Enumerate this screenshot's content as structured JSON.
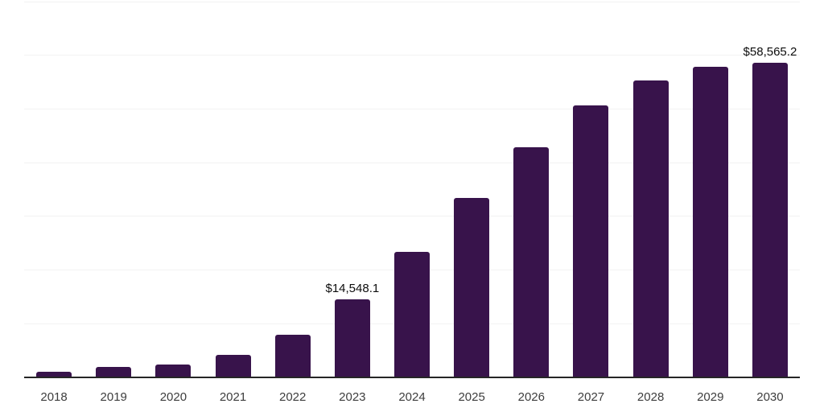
{
  "chart_data": {
    "type": "bar",
    "title": "",
    "xlabel": "",
    "ylabel": "",
    "categories": [
      "2018",
      "2019",
      "2020",
      "2021",
      "2022",
      "2023",
      "2024",
      "2025",
      "2026",
      "2027",
      "2028",
      "2029",
      "2030"
    ],
    "values": [
      1000,
      1900,
      2350,
      4230,
      7970,
      14548.1,
      23400,
      33400,
      42900,
      50600,
      55300,
      57900,
      58565.2
    ],
    "point_labels": [
      {
        "category": "2023",
        "text": "$14,548.1"
      },
      {
        "category": "2030",
        "text": "$58,565.2"
      }
    ],
    "ylim": [
      0,
      70000
    ],
    "gridline_interval": 10000,
    "grid": true,
    "legend": false,
    "y_axis_tick_labels_visible": false,
    "colors": {
      "bar": "#38134B",
      "axis_line": "#262626",
      "gridline": "#f2f2f2",
      "tick_label": "#3d3d3d",
      "point_label": "#0d0d0d",
      "background": "#ffffff"
    }
  }
}
